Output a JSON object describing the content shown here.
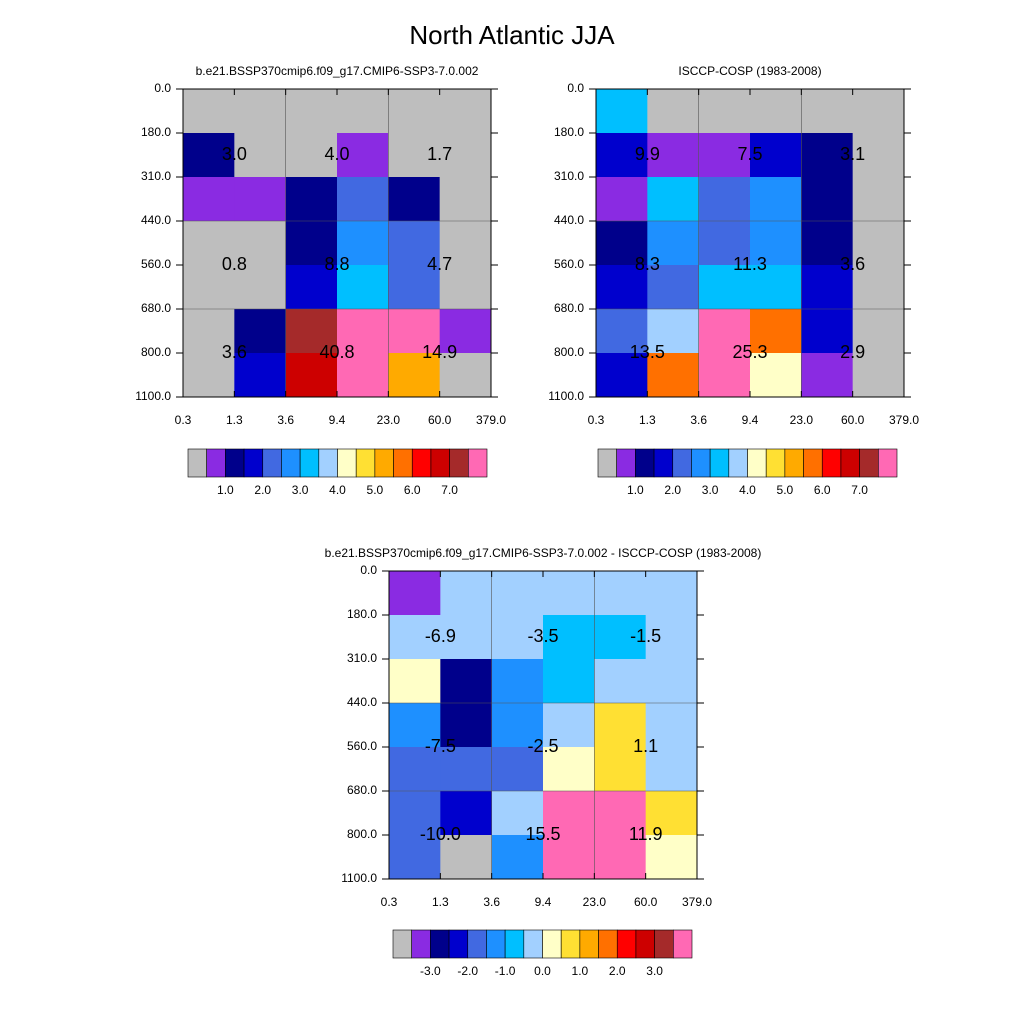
{
  "title": "North Atlantic JJA",
  "chart_data": [
    {
      "type": "heatmap",
      "title": "b.e21.BSSP370cmip6.f09_g17.CMIP6-SSP3-7.0.002",
      "x_edges": [
        "0.3",
        "1.3",
        "3.6",
        "9.4",
        "23.0",
        "60.0",
        "379.0"
      ],
      "y_edges": [
        "0.0",
        "180.0",
        "310.0",
        "440.0",
        "560.0",
        "680.0",
        "800.0",
        "1100.0"
      ],
      "values": [
        [
          0.25,
          0.25,
          0.25,
          0.25,
          0.25,
          0.25
        ],
        [
          1.25,
          0.25,
          0.25,
          0.75,
          0.25,
          0.25
        ],
        [
          0.75,
          0.75,
          1.25,
          2.25,
          1.25,
          0.25
        ],
        [
          0.25,
          0.25,
          1.25,
          2.75,
          2.25,
          0.25
        ],
        [
          0.25,
          0.25,
          1.75,
          3.25,
          2.25,
          0.25
        ],
        [
          0.25,
          1.25,
          7.25,
          7.75,
          7.75,
          0.75
        ],
        [
          0.25,
          1.75,
          6.75,
          7.75,
          5.25,
          0.25
        ]
      ],
      "annotations": [
        [
          "3.0",
          "4.0",
          "1.7"
        ],
        [
          "0.8",
          "8.8",
          "4.7"
        ],
        [
          "3.6",
          "40.8",
          "14.9"
        ]
      ],
      "colorbar": {
        "colors": [
          "#bebebe",
          "#8a2be2",
          "#00008b",
          "#0000cd",
          "#4169e1",
          "#1e90ff",
          "#00bfff",
          "#a2d0ff",
          "#ffffc8",
          "#ffe033",
          "#ffaa00",
          "#ff7000",
          "#ff0000",
          "#cd0000",
          "#a52a2a",
          "#ff69b4"
        ],
        "lim": [
          0,
          8
        ],
        "ticks": [
          {
            "value": 1,
            "label": "1.0"
          },
          {
            "value": 2,
            "label": "2.0"
          },
          {
            "value": 3,
            "label": "3.0"
          },
          {
            "value": 4,
            "label": "4.0"
          },
          {
            "value": 5,
            "label": "5.0"
          },
          {
            "value": 6,
            "label": "6.0"
          },
          {
            "value": 7,
            "label": "7.0"
          }
        ]
      }
    },
    {
      "type": "heatmap",
      "title": "ISCCP-COSP (1983-2008)",
      "x_edges": [
        "0.3",
        "1.3",
        "3.6",
        "9.4",
        "23.0",
        "60.0",
        "379.0"
      ],
      "y_edges": [
        "0.0",
        "180.0",
        "310.0",
        "440.0",
        "560.0",
        "680.0",
        "800.0",
        "1100.0"
      ],
      "values": [
        [
          3.25,
          0.25,
          0.25,
          0.25,
          0.25,
          0.25
        ],
        [
          1.75,
          0.75,
          0.75,
          1.75,
          1.25,
          0.25
        ],
        [
          0.75,
          3.25,
          2.25,
          2.75,
          1.25,
          0.25
        ],
        [
          1.25,
          2.75,
          2.25,
          2.75,
          1.25,
          0.25
        ],
        [
          1.75,
          2.25,
          3.25,
          3.25,
          1.75,
          0.25
        ],
        [
          2.25,
          3.75,
          7.75,
          5.75,
          1.75,
          0.25
        ],
        [
          1.75,
          5.75,
          7.75,
          4.25,
          0.75,
          0.25
        ]
      ],
      "annotations": [
        [
          "9.9",
          "7.5",
          "3.1"
        ],
        [
          "8.3",
          "11.3",
          "3.6"
        ],
        [
          "13.5",
          "25.3",
          "2.9"
        ]
      ],
      "colorbar": {
        "colors": [
          "#bebebe",
          "#8a2be2",
          "#00008b",
          "#0000cd",
          "#4169e1",
          "#1e90ff",
          "#00bfff",
          "#a2d0ff",
          "#ffffc8",
          "#ffe033",
          "#ffaa00",
          "#ff7000",
          "#ff0000",
          "#cd0000",
          "#a52a2a",
          "#ff69b4"
        ],
        "lim": [
          0,
          8
        ],
        "ticks": [
          {
            "value": 1,
            "label": "1.0"
          },
          {
            "value": 2,
            "label": "2.0"
          },
          {
            "value": 3,
            "label": "3.0"
          },
          {
            "value": 4,
            "label": "4.0"
          },
          {
            "value": 5,
            "label": "5.0"
          },
          {
            "value": 6,
            "label": "6.0"
          },
          {
            "value": 7,
            "label": "7.0"
          }
        ]
      }
    },
    {
      "type": "heatmap",
      "title": "b.e21.BSSP370cmip6.f09_g17.CMIP6-SSP3-7.0.002 - ISCCP-COSP (1983-2008)",
      "x_edges": [
        "0.3",
        "1.3",
        "3.6",
        "9.4",
        "23.0",
        "60.0",
        "379.0"
      ],
      "y_edges": [
        "0.0",
        "180.0",
        "310.0",
        "440.0",
        "560.0",
        "680.0",
        "800.0",
        "1100.0"
      ],
      "values": [
        [
          -3.25,
          -0.25,
          -0.25,
          -0.25,
          -0.25,
          -0.25
        ],
        [
          -0.25,
          -0.25,
          -0.25,
          -0.75,
          -0.75,
          -0.25
        ],
        [
          0.25,
          -2.75,
          -1.25,
          -0.75,
          -0.25,
          -0.25
        ],
        [
          -1.25,
          -2.75,
          -1.25,
          -0.25,
          0.75,
          -0.25
        ],
        [
          -1.75,
          -1.75,
          -1.75,
          0.25,
          0.75,
          -0.25
        ],
        [
          -1.75,
          -2.25,
          -0.25,
          3.75,
          3.75,
          0.75
        ],
        [
          -1.75,
          -3.75,
          -1.25,
          3.75,
          3.75,
          0.25
        ]
      ],
      "annotations": [
        [
          "-6.9",
          "-3.5",
          "-1.5"
        ],
        [
          "-7.5",
          "-2.5",
          "1.1"
        ],
        [
          "-10.0",
          "15.5",
          "11.9"
        ]
      ],
      "colorbar": {
        "colors": [
          "#bebebe",
          "#8a2be2",
          "#00008b",
          "#0000cd",
          "#4169e1",
          "#1e90ff",
          "#00bfff",
          "#a2d0ff",
          "#ffffc8",
          "#ffe033",
          "#ffaa00",
          "#ff7000",
          "#ff0000",
          "#cd0000",
          "#a52a2a",
          "#ff69b4"
        ],
        "lim": [
          -4,
          4
        ],
        "ticks": [
          {
            "value": -3,
            "label": "-3.0"
          },
          {
            "value": -2,
            "label": "-2.0"
          },
          {
            "value": -1,
            "label": "-1.0"
          },
          {
            "value": 0,
            "label": "0.0"
          },
          {
            "value": 1,
            "label": "1.0"
          },
          {
            "value": 2,
            "label": "2.0"
          },
          {
            "value": 3,
            "label": "3.0"
          }
        ]
      }
    }
  ]
}
